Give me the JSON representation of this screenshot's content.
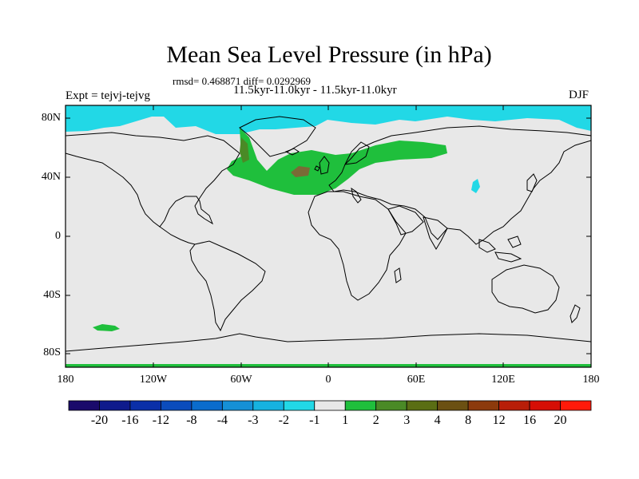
{
  "title": "Mean Sea Level Pressure (in hPa)",
  "stats": "rmsd= 0.468871 diff= 0.0292969",
  "subtitle": "11.5kyr-11.0kyr - 11.5kyr-11.0kyr",
  "experiment": "Expt = tejvj-tejvg",
  "season": "DJF",
  "lat_labels": [
    "80N",
    "40N",
    "0",
    "40S",
    "80S"
  ],
  "lon_labels": [
    "180",
    "120W",
    "60W",
    "0",
    "60E",
    "120E",
    "180"
  ],
  "colorbar": {
    "labels": [
      "-20",
      "-16",
      "-12",
      "-8",
      "-4",
      "-3",
      "-2",
      "-1",
      "1",
      "2",
      "3",
      "4",
      "8",
      "12",
      "16",
      "20"
    ],
    "colors": [
      "#1a0a6b",
      "#0f1a8c",
      "#0a2fa8",
      "#0b4cbc",
      "#0a6ccc",
      "#1590d6",
      "#16b2e0",
      "#22d8e6",
      "#e8e8e8",
      "#1fbf3c",
      "#4a8a26",
      "#5a6e14",
      "#6b5012",
      "#8c3a0c",
      "#b81e08",
      "#d60e06",
      "#ff1a0a"
    ]
  },
  "colors": {
    "land_background": "#e8e8e8",
    "negative_anomaly": "#22d8e6",
    "positive_anomaly": "#1fbf3c",
    "strong_positive": "#7a6b36"
  }
}
